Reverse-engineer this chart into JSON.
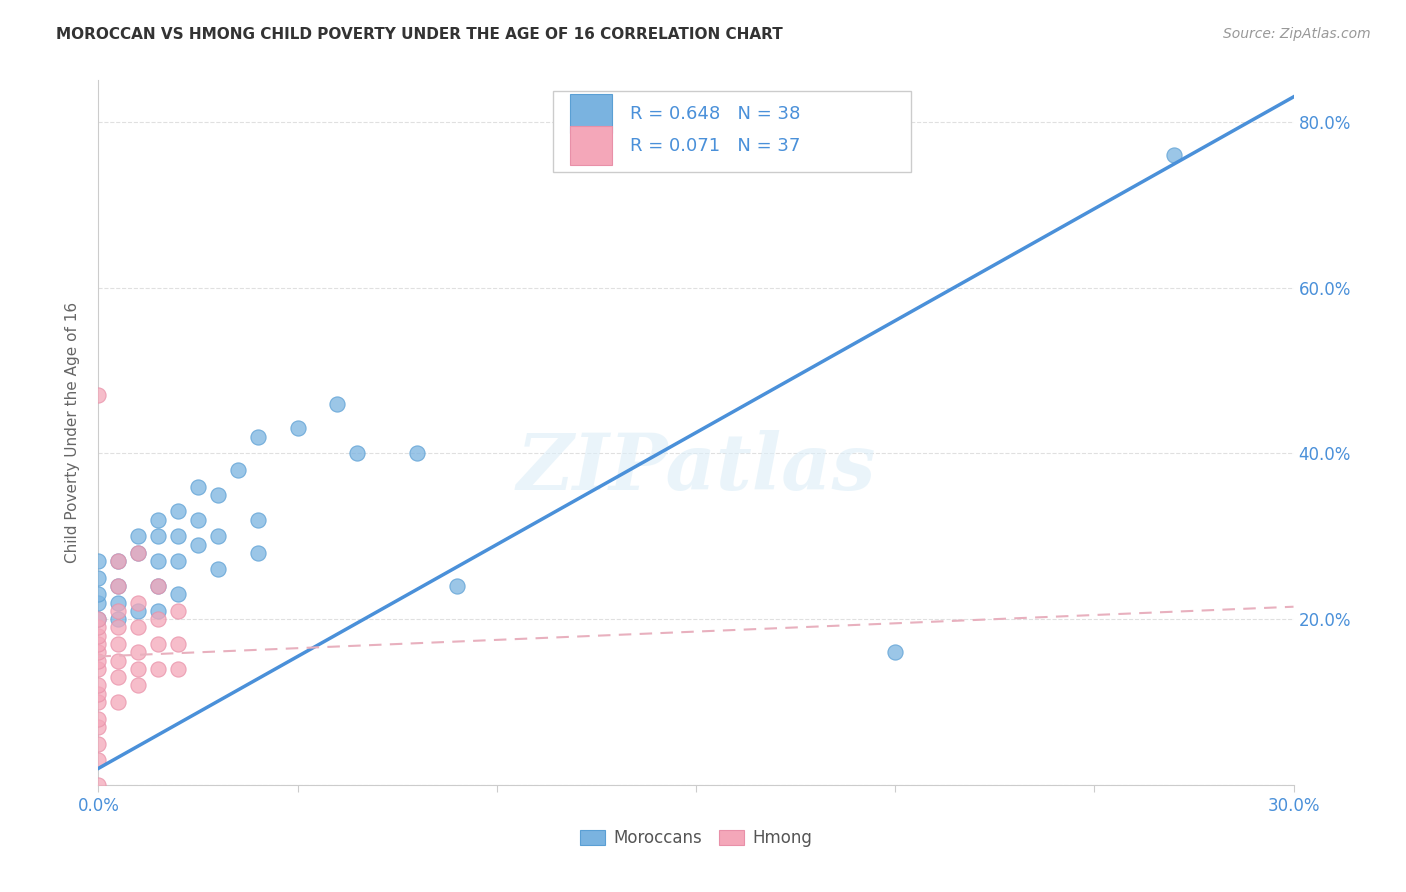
{
  "title": "MOROCCAN VS HMONG CHILD POVERTY UNDER THE AGE OF 16 CORRELATION CHART",
  "source": "Source: ZipAtlas.com",
  "ylabel": "Child Poverty Under the Age of 16",
  "watermark": "ZIPatlas",
  "x_min": 0.0,
  "x_max": 0.3,
  "y_min": 0.0,
  "y_max": 0.85,
  "x_ticks": [
    0.0,
    0.05,
    0.1,
    0.15,
    0.2,
    0.25,
    0.3
  ],
  "y_ticks": [
    0.0,
    0.2,
    0.4,
    0.6,
    0.8
  ],
  "y_tick_labels": [
    "",
    "20.0%",
    "40.0%",
    "60.0%",
    "80.0%"
  ],
  "moroccan_color": "#7ab3e0",
  "hmong_color": "#f4a7b9",
  "moroccan_edge_color": "#5a9fd4",
  "hmong_edge_color": "#e890a8",
  "moroccan_R": "0.648",
  "moroccan_N": "38",
  "hmong_R": "0.071",
  "hmong_N": "37",
  "moroccan_line_color": "#4a90d9",
  "hmong_line_color": "#e8b0be",
  "grid_color": "#e0e0e0",
  "title_color": "#333333",
  "axis_label_color": "#4a90d9",
  "moroccan_points_x": [
    0.0,
    0.0,
    0.0,
    0.0,
    0.0,
    0.005,
    0.005,
    0.005,
    0.005,
    0.01,
    0.01,
    0.01,
    0.015,
    0.015,
    0.015,
    0.015,
    0.015,
    0.02,
    0.02,
    0.02,
    0.02,
    0.025,
    0.025,
    0.025,
    0.03,
    0.03,
    0.03,
    0.035,
    0.04,
    0.04,
    0.04,
    0.05,
    0.06,
    0.065,
    0.08,
    0.09,
    0.2,
    0.27
  ],
  "moroccan_points_y": [
    0.2,
    0.22,
    0.23,
    0.25,
    0.27,
    0.2,
    0.22,
    0.24,
    0.27,
    0.21,
    0.28,
    0.3,
    0.21,
    0.24,
    0.27,
    0.3,
    0.32,
    0.23,
    0.27,
    0.3,
    0.33,
    0.29,
    0.32,
    0.36,
    0.26,
    0.3,
    0.35,
    0.38,
    0.28,
    0.32,
    0.42,
    0.43,
    0.46,
    0.4,
    0.4,
    0.24,
    0.16,
    0.76
  ],
  "hmong_points_x": [
    0.0,
    0.0,
    0.0,
    0.0,
    0.0,
    0.0,
    0.0,
    0.0,
    0.0,
    0.0,
    0.0,
    0.0,
    0.0,
    0.0,
    0.0,
    0.005,
    0.005,
    0.005,
    0.005,
    0.005,
    0.005,
    0.005,
    0.005,
    0.01,
    0.01,
    0.01,
    0.01,
    0.01,
    0.01,
    0.015,
    0.015,
    0.015,
    0.015,
    0.02,
    0.02,
    0.02,
    0.0
  ],
  "hmong_points_y": [
    0.03,
    0.05,
    0.07,
    0.08,
    0.1,
    0.11,
    0.12,
    0.14,
    0.15,
    0.16,
    0.17,
    0.18,
    0.19,
    0.2,
    0.47,
    0.1,
    0.13,
    0.15,
    0.17,
    0.19,
    0.21,
    0.24,
    0.27,
    0.12,
    0.14,
    0.16,
    0.19,
    0.22,
    0.28,
    0.14,
    0.17,
    0.2,
    0.24,
    0.14,
    0.17,
    0.21,
    0.0
  ],
  "moroccan_trendline_x": [
    0.0,
    0.3
  ],
  "moroccan_trendline_y": [
    0.02,
    0.83
  ],
  "hmong_trendline_x": [
    0.0,
    0.3
  ],
  "hmong_trendline_y": [
    0.155,
    0.215
  ],
  "background_color": "#ffffff"
}
